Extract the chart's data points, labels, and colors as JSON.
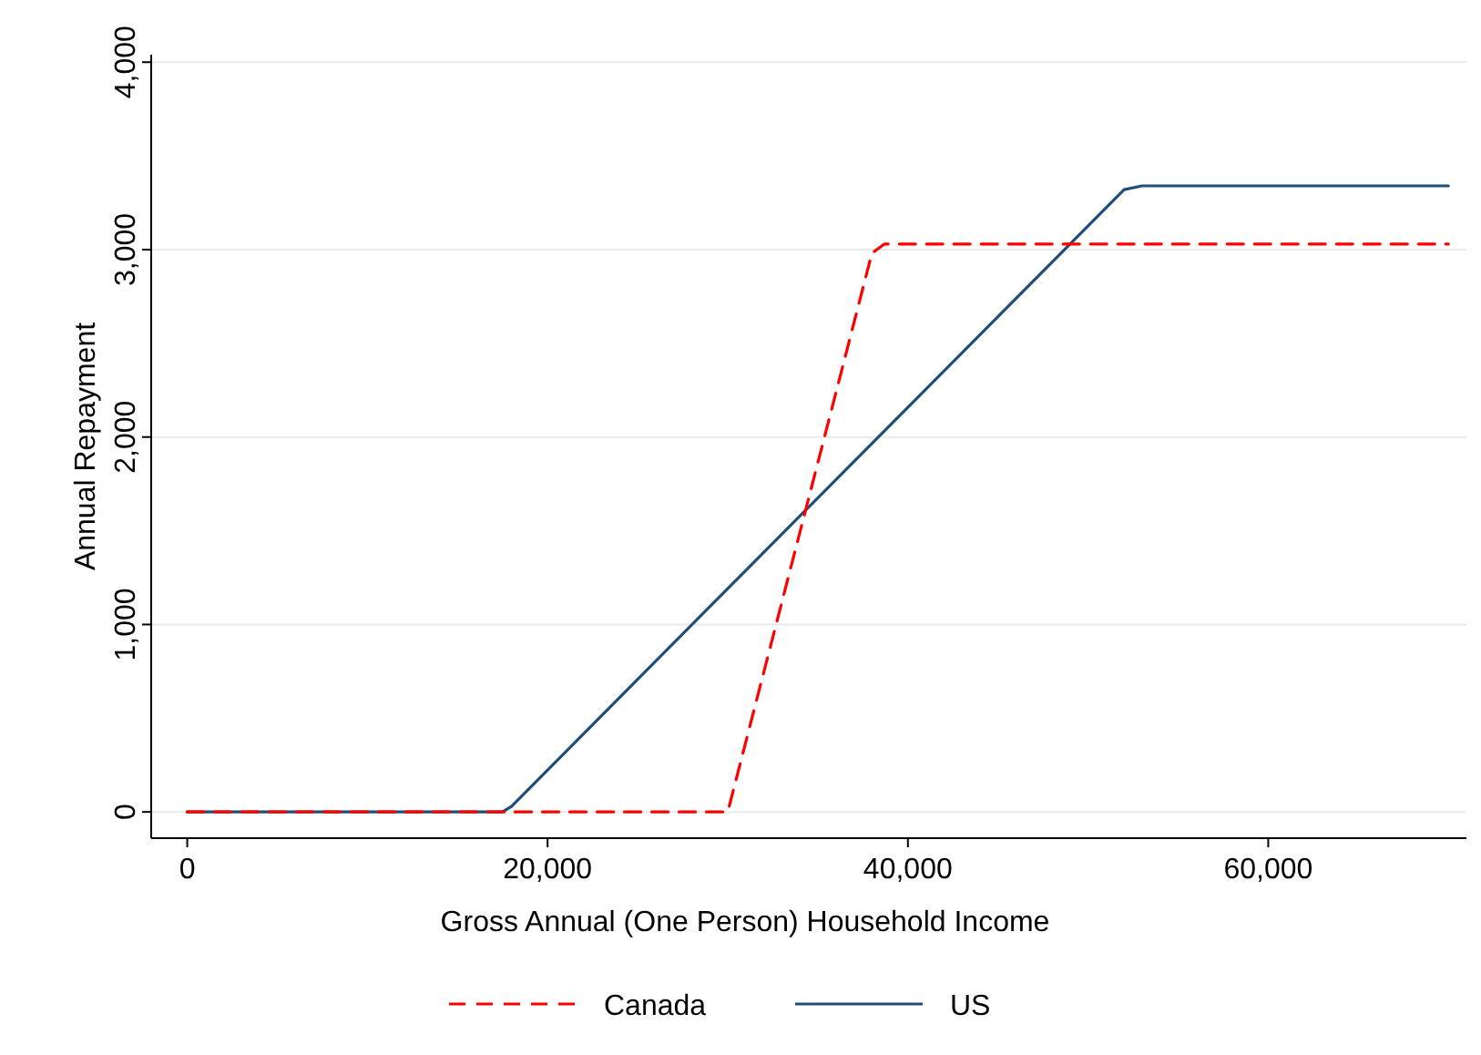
{
  "chart_data": {
    "type": "line",
    "xlabel": "Gross Annual (One Person) Household Income",
    "ylabel": "Annual Repayment",
    "xlim": [
      -2000,
      71000
    ],
    "ylim": [
      -140,
      4040
    ],
    "xticks": [
      {
        "value": 0,
        "label": "0"
      },
      {
        "value": 20000,
        "label": "20,000"
      },
      {
        "value": 40000,
        "label": "40,000"
      },
      {
        "value": 60000,
        "label": "60,000"
      }
    ],
    "yticks": [
      {
        "value": 0,
        "label": "0"
      },
      {
        "value": 1000,
        "label": "1,000"
      },
      {
        "value": 2000,
        "label": "2,000"
      },
      {
        "value": 3000,
        "label": "3,000"
      },
      {
        "value": 4000,
        "label": "4,000"
      }
    ],
    "grid": "y",
    "legend": "bottom",
    "series": [
      {
        "name": "Canada",
        "color": "#ff0000",
        "line_style": "dashed",
        "x": [
          0,
          30000,
          38000,
          38700,
          70000
        ],
        "values": [
          0,
          0,
          2980,
          3030,
          3030
        ]
      },
      {
        "name": "US",
        "color": "#1f4e79",
        "line_style": "solid",
        "x": [
          0,
          17500,
          18000,
          52000,
          53000,
          70000
        ],
        "values": [
          0,
          0,
          30,
          3320,
          3340,
          3340
        ]
      }
    ]
  }
}
